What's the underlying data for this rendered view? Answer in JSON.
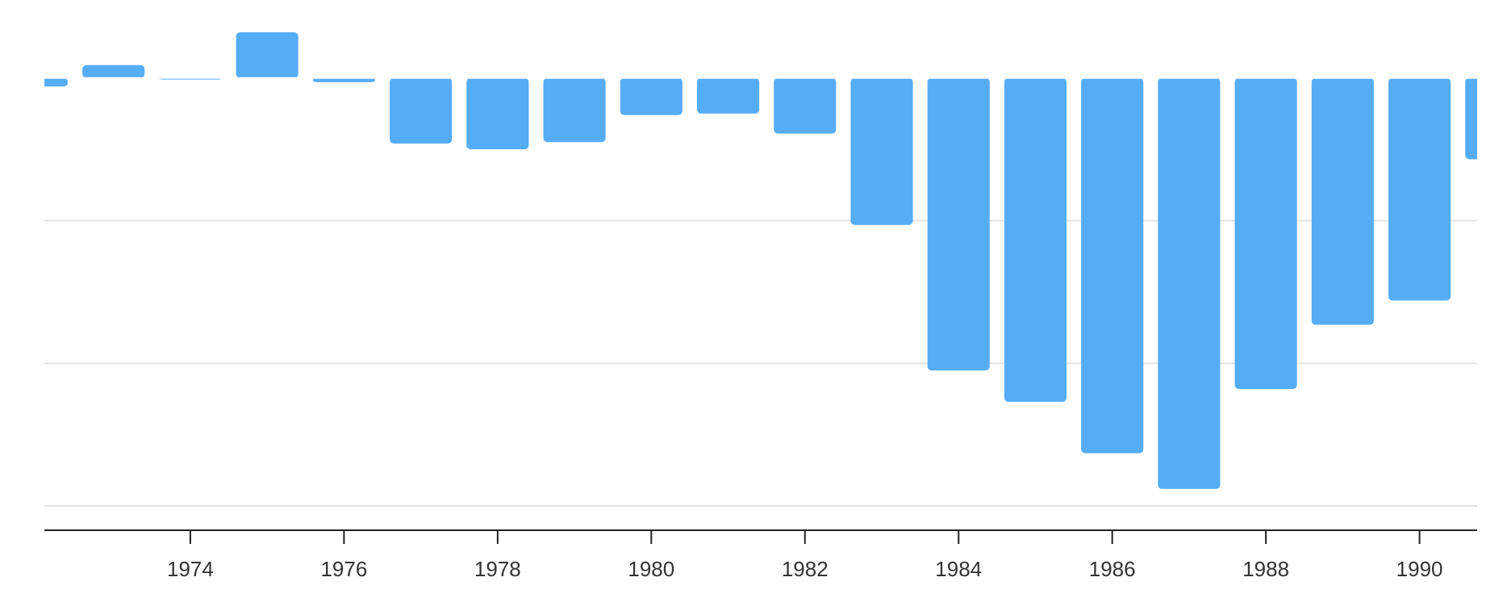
{
  "chart_data": {
    "type": "bar",
    "title": "",
    "xlabel": "",
    "ylabel": "",
    "x": [
      1972,
      1973,
      1974,
      1975,
      1976,
      1977,
      1978,
      1979,
      1980,
      1981,
      1982,
      1983,
      1984,
      1985,
      1986,
      1987,
      1988,
      1989,
      1990,
      1991
    ],
    "values": [
      -0.06,
      0.09,
      -0.01,
      0.32,
      -0.03,
      -0.46,
      -0.5,
      -0.45,
      -0.26,
      -0.25,
      -0.39,
      -1.03,
      -2.05,
      -2.27,
      -2.63,
      -2.88,
      -2.18,
      -1.73,
      -1.56,
      -0.57
    ],
    "xlim": [
      1972.1,
      1990.75
    ],
    "ylim": [
      -3.0,
      0.32
    ],
    "x_tick_values": [
      1974,
      1976,
      1978,
      1980,
      1982,
      1984,
      1986,
      1988,
      1990
    ],
    "x_tick_labels": [
      "1974",
      "1976",
      "1978",
      "1980",
      "1982",
      "1984",
      "1986",
      "1988",
      "1990"
    ],
    "y_gridlines": [
      0,
      -1,
      -2,
      -3
    ],
    "grid": true,
    "legend": "none",
    "colors": {
      "bar": "#56adf7",
      "grid": "#e3e3e3",
      "axis": "#222222",
      "zero_line": "#ffffff",
      "text": "#333333"
    }
  }
}
